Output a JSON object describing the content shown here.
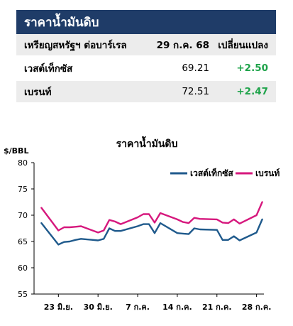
{
  "table": {
    "title": "ราคาน้ำมันดิบ",
    "header": [
      "เหรียญสหรัฐฯ ต่อบาร์เรล",
      "29 ก.ค. 68",
      "เปลี่ยนแปลง"
    ],
    "rows": [
      {
        "name": "เวสต์เท็กซัส",
        "price": "69.21",
        "change": "+2.50"
      },
      {
        "name": "เบรนท์",
        "price": "72.51",
        "change": "+2.47"
      }
    ]
  },
  "colors": {
    "header_bg": "#1f3c68",
    "positive": "#1ea34a",
    "wti": "#1f5a8c",
    "brent": "#d6187d"
  },
  "chart_data": {
    "type": "line",
    "title": "ราคาน้ำมันดิบ",
    "ylabel": "$/BBL",
    "ylim": [
      55,
      80
    ],
    "yticks": [
      "80",
      "75",
      "70",
      "65",
      "60",
      "55"
    ],
    "xticks": [
      "23 มิ.ย.",
      "30 มิ.ย.",
      "7 ก.ค.",
      "14 ก.ค.",
      "21 ก.ค.",
      "28 ก.ค."
    ],
    "legend_position": "top-right",
    "grid": false,
    "x": [
      "2025-06-20",
      "2025-06-23",
      "2025-06-24",
      "2025-06-25",
      "2025-06-26",
      "2025-06-27",
      "2025-06-30",
      "2025-07-01",
      "2025-07-02",
      "2025-07-03",
      "2025-07-04",
      "2025-07-07",
      "2025-07-08",
      "2025-07-09",
      "2025-07-10",
      "2025-07-11",
      "2025-07-14",
      "2025-07-15",
      "2025-07-16",
      "2025-07-17",
      "2025-07-18",
      "2025-07-21",
      "2025-07-22",
      "2025-07-23",
      "2025-07-24",
      "2025-07-25",
      "2025-07-28",
      "2025-07-29"
    ],
    "series": [
      {
        "name": "เวสต์เท็กซัส",
        "values": [
          68.5,
          64.4,
          64.9,
          65.0,
          65.3,
          65.5,
          65.2,
          65.5,
          67.5,
          67.0,
          67.0,
          67.9,
          68.3,
          68.3,
          66.6,
          68.5,
          66.6,
          66.5,
          66.4,
          67.5,
          67.3,
          67.2,
          65.3,
          65.3,
          66.0,
          65.2,
          66.7,
          69.2
        ]
      },
      {
        "name": "เบรนท์",
        "values": [
          71.4,
          67.1,
          67.7,
          67.7,
          67.8,
          67.9,
          66.7,
          67.1,
          69.1,
          68.8,
          68.3,
          69.6,
          70.2,
          70.2,
          68.6,
          70.4,
          69.2,
          68.7,
          68.5,
          69.5,
          69.3,
          69.2,
          68.6,
          68.5,
          69.2,
          68.4,
          70.0,
          72.5
        ]
      }
    ]
  }
}
